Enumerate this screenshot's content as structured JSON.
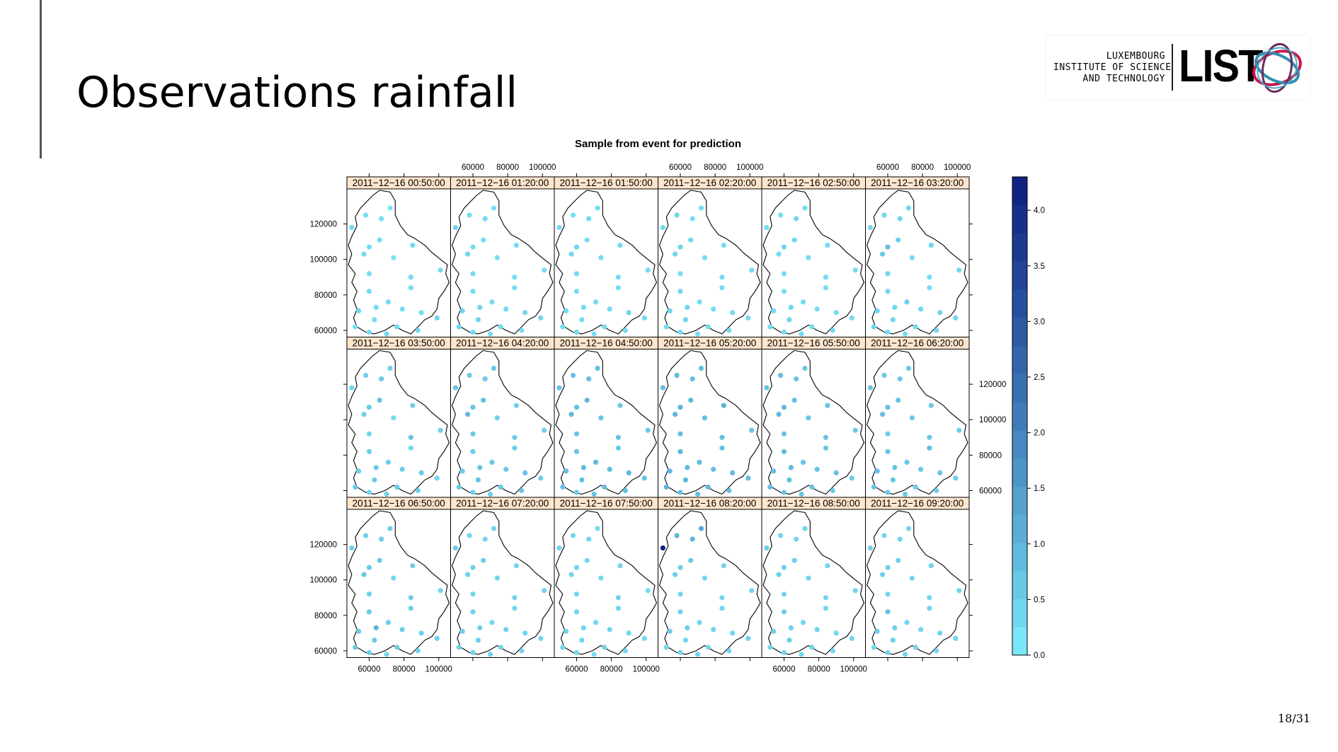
{
  "slide": {
    "title": "Observations rainfall",
    "page_number": "18/31",
    "logo": {
      "line1": "LUXEMBOURG",
      "line2": "INSTITUTE OF SCIENCE",
      "line3": "AND TECHNOLOGY",
      "wordmark": "LIST",
      "colors": [
        "#c8184a",
        "#2f8fb0",
        "#6b2d5c"
      ]
    }
  },
  "chart_data": {
    "type": "scatter",
    "title": "Sample from event for prediction",
    "layout": "3 rows x 6 panels of point maps over Luxembourg outline",
    "x_ticks": [
      "60000",
      "80000",
      "100000"
    ],
    "y_ticks": [
      "60000",
      "80000",
      "100000",
      "120000"
    ],
    "xlim": [
      48000,
      106000
    ],
    "ylim": [
      57000,
      139000
    ],
    "panels": [
      "2011−12−16 00:50:00",
      "2011−12−16 01:20:00",
      "2011−12−16 01:50:00",
      "2011−12−16 02:20:00",
      "2011−12−16 02:50:00",
      "2011−12−16 03:20:00",
      "2011−12−16 03:50:00",
      "2011−12−16 04:20:00",
      "2011−12−16 04:50:00",
      "2011−12−16 05:20:00",
      "2011−12−16 05:50:00",
      "2011−12−16 06:20:00",
      "2011−12−16 06:50:00",
      "2011−12−16 07:20:00",
      "2011−12−16 07:50:00",
      "2011−12−16 08:20:00",
      "2011−12−16 08:50:00",
      "2011−12−16 09:20:00"
    ],
    "stations": [
      [
        72000,
        129000
      ],
      [
        58000,
        125000
      ],
      [
        67000,
        123000
      ],
      [
        50000,
        118000
      ],
      [
        66000,
        111000
      ],
      [
        60000,
        107000
      ],
      [
        57000,
        103000
      ],
      [
        74000,
        101000
      ],
      [
        85000,
        108000
      ],
      [
        60000,
        92000
      ],
      [
        84000,
        90000
      ],
      [
        101000,
        94000
      ],
      [
        60000,
        82000
      ],
      [
        84000,
        84000
      ],
      [
        71000,
        76000
      ],
      [
        54000,
        71000
      ],
      [
        64000,
        73000
      ],
      [
        79000,
        72000
      ],
      [
        90000,
        70000
      ],
      [
        99000,
        67000
      ],
      [
        63000,
        66000
      ],
      [
        52000,
        62000
      ],
      [
        76000,
        62000
      ],
      [
        70000,
        58000
      ],
      [
        60000,
        59000
      ],
      [
        88000,
        60000
      ]
    ],
    "values": [
      [
        0.2,
        0.3,
        0.3,
        0.3,
        0.3,
        0.3,
        0.3,
        0.2,
        0.3,
        0.3,
        0.3,
        0.3,
        0.3,
        0.3,
        0.3,
        0.4,
        0.3,
        0.3,
        0.3,
        0.4,
        0.3,
        0.3,
        0.3,
        0.3,
        0.3,
        0.3
      ],
      [
        0.2,
        0.3,
        0.3,
        0.4,
        0.3,
        0.3,
        0.4,
        0.3,
        0.3,
        0.3,
        0.3,
        0.3,
        0.3,
        0.3,
        0.3,
        0.4,
        0.4,
        0.3,
        0.4,
        0.4,
        0.4,
        0.4,
        0.3,
        0.3,
        0.3,
        0.3
      ],
      [
        0.3,
        0.3,
        0.3,
        0.3,
        0.3,
        0.4,
        0.4,
        0.3,
        0.3,
        0.3,
        0.3,
        0.3,
        0.3,
        0.3,
        0.3,
        0.3,
        0.3,
        0.3,
        0.4,
        0.3,
        0.3,
        0.3,
        0.3,
        0.3,
        0.3,
        0.3
      ],
      [
        0.3,
        0.4,
        0.3,
        0.3,
        0.4,
        0.4,
        0.4,
        0.3,
        0.3,
        0.3,
        0.3,
        0.3,
        0.4,
        0.3,
        0.3,
        0.4,
        0.4,
        0.3,
        0.3,
        0.3,
        0.4,
        0.3,
        0.3,
        0.3,
        0.3,
        0.3
      ],
      [
        0.3,
        0.3,
        0.4,
        0.3,
        0.4,
        0.4,
        0.3,
        0.3,
        0.3,
        0.3,
        0.3,
        0.3,
        0.3,
        0.3,
        0.3,
        0.3,
        0.4,
        0.3,
        0.3,
        0.3,
        0.4,
        0.3,
        0.3,
        0.3,
        0.3,
        0.3
      ],
      [
        0.4,
        0.4,
        0.4,
        0.4,
        0.5,
        0.8,
        0.6,
        0.3,
        0.4,
        0.4,
        0.3,
        0.3,
        0.4,
        0.3,
        0.5,
        0.4,
        0.4,
        0.4,
        0.4,
        0.4,
        0.4,
        0.4,
        0.3,
        0.3,
        0.3,
        0.3
      ],
      [
        0.5,
        0.5,
        0.6,
        0.4,
        0.7,
        0.6,
        0.5,
        0.3,
        0.5,
        0.4,
        0.7,
        0.5,
        0.5,
        0.4,
        0.5,
        0.5,
        0.6,
        0.5,
        0.6,
        0.4,
        0.6,
        0.6,
        0.6,
        0.5,
        0.4,
        0.5
      ],
      [
        0.6,
        0.6,
        0.6,
        0.7,
        0.8,
        0.7,
        0.9,
        0.5,
        0.5,
        0.6,
        0.6,
        0.5,
        0.6,
        0.5,
        0.6,
        0.6,
        0.7,
        0.6,
        0.8,
        0.5,
        0.7,
        0.6,
        0.6,
        0.5,
        0.5,
        0.6
      ],
      [
        0.8,
        0.7,
        0.8,
        0.7,
        0.9,
        0.8,
        0.9,
        0.7,
        0.6,
        0.7,
        0.7,
        0.6,
        0.7,
        0.6,
        0.9,
        0.8,
        0.9,
        0.8,
        1.0,
        0.7,
        0.8,
        0.8,
        0.8,
        0.7,
        0.6,
        0.8
      ],
      [
        0.8,
        0.9,
        0.8,
        0.8,
        0.9,
        1.0,
        1.0,
        0.8,
        1.0,
        0.8,
        0.8,
        0.7,
        1.0,
        0.8,
        0.8,
        0.9,
        0.9,
        0.8,
        0.9,
        0.8,
        1.0,
        1.0,
        0.9,
        0.8,
        0.8,
        0.8
      ],
      [
        0.7,
        0.8,
        0.7,
        0.7,
        0.8,
        0.9,
        0.9,
        0.7,
        0.7,
        0.7,
        0.7,
        0.6,
        0.9,
        0.7,
        0.7,
        0.8,
        0.9,
        0.7,
        0.7,
        0.6,
        0.8,
        0.8,
        0.7,
        0.7,
        0.7,
        0.6
      ],
      [
        0.6,
        0.6,
        0.6,
        0.7,
        0.7,
        0.8,
        0.8,
        0.6,
        0.6,
        0.6,
        0.6,
        0.5,
        0.7,
        0.8,
        0.6,
        0.7,
        0.7,
        0.6,
        0.7,
        0.5,
        0.7,
        0.7,
        0.6,
        0.6,
        0.6,
        0.5
      ],
      [
        0.5,
        0.5,
        0.5,
        0.5,
        0.6,
        0.6,
        0.6,
        0.4,
        0.5,
        0.5,
        0.5,
        0.4,
        0.6,
        0.5,
        0.5,
        0.6,
        1.0,
        0.5,
        0.5,
        0.5,
        0.6,
        0.6,
        0.5,
        0.4,
        0.5,
        0.4
      ],
      [
        0.4,
        0.4,
        0.4,
        0.5,
        0.5,
        0.5,
        0.5,
        0.4,
        0.4,
        0.4,
        0.4,
        0.4,
        0.5,
        0.4,
        0.4,
        0.5,
        0.5,
        0.4,
        0.4,
        0.4,
        0.5,
        0.5,
        0.4,
        0.4,
        0.4,
        0.4
      ],
      [
        0.3,
        0.4,
        0.4,
        0.4,
        0.4,
        0.4,
        0.4,
        0.3,
        0.4,
        0.4,
        0.4,
        0.3,
        0.4,
        0.4,
        0.4,
        0.4,
        0.4,
        0.4,
        0.4,
        0.3,
        0.4,
        0.4,
        0.4,
        0.3,
        0.3,
        0.4
      ],
      [
        1.2,
        1.0,
        1.0,
        4.2,
        0.6,
        0.5,
        0.5,
        0.4,
        0.4,
        0.4,
        0.4,
        0.4,
        0.5,
        0.4,
        0.4,
        0.5,
        0.5,
        0.4,
        0.4,
        0.4,
        0.4,
        0.4,
        0.4,
        0.4,
        0.4,
        0.4
      ],
      [
        0.4,
        0.4,
        0.4,
        0.5,
        0.5,
        0.5,
        0.5,
        0.4,
        0.4,
        0.4,
        0.4,
        0.4,
        0.5,
        0.4,
        0.4,
        0.5,
        0.5,
        0.4,
        0.4,
        0.4,
        0.5,
        0.4,
        0.4,
        0.4,
        0.4,
        0.4
      ],
      [
        0.4,
        0.4,
        0.4,
        0.5,
        0.5,
        0.5,
        0.5,
        0.4,
        0.4,
        0.4,
        0.4,
        0.4,
        0.8,
        0.4,
        0.4,
        0.5,
        0.5,
        0.4,
        0.4,
        0.4,
        0.5,
        0.4,
        0.4,
        0.4,
        0.4,
        0.4
      ]
    ],
    "outline": [
      [
        66000,
        139000
      ],
      [
        72000,
        138000
      ],
      [
        75000,
        133000
      ],
      [
        75000,
        125000
      ],
      [
        78000,
        119000
      ],
      [
        82000,
        114000
      ],
      [
        86000,
        112000
      ],
      [
        92000,
        108000
      ],
      [
        96000,
        104000
      ],
      [
        101000,
        100000
      ],
      [
        105000,
        97000
      ],
      [
        104000,
        92000
      ],
      [
        106000,
        87000
      ],
      [
        103000,
        82000
      ],
      [
        100000,
        78000
      ],
      [
        99000,
        72000
      ],
      [
        96000,
        68000
      ],
      [
        92000,
        66000
      ],
      [
        88000,
        62000
      ],
      [
        84000,
        58000
      ],
      [
        79000,
        60000
      ],
      [
        74000,
        63000
      ],
      [
        69000,
        60000
      ],
      [
        63000,
        58000
      ],
      [
        58000,
        59000
      ],
      [
        53000,
        62000
      ],
      [
        51000,
        67000
      ],
      [
        53000,
        72000
      ],
      [
        51000,
        77000
      ],
      [
        53000,
        82000
      ],
      [
        50000,
        87000
      ],
      [
        52000,
        92000
      ],
      [
        48000,
        97000
      ],
      [
        50000,
        103000
      ],
      [
        48000,
        108000
      ],
      [
        50000,
        113000
      ],
      [
        53000,
        119000
      ],
      [
        52000,
        124000
      ],
      [
        55000,
        129000
      ],
      [
        59000,
        133000
      ],
      [
        62000,
        136000
      ],
      [
        66000,
        139000
      ]
    ],
    "colorbar": {
      "min": 0.0,
      "max": 4.3,
      "ticks": [
        "0.0",
        "0.5",
        "1.0",
        "1.5",
        "2.0",
        "2.5",
        "3.0",
        "3.5",
        "4.0"
      ],
      "low_color": "#80f1ff",
      "high_color": "#0d1f80"
    },
    "strip_color": "#ffe5cc",
    "grid": false,
    "legend_position": "right"
  }
}
